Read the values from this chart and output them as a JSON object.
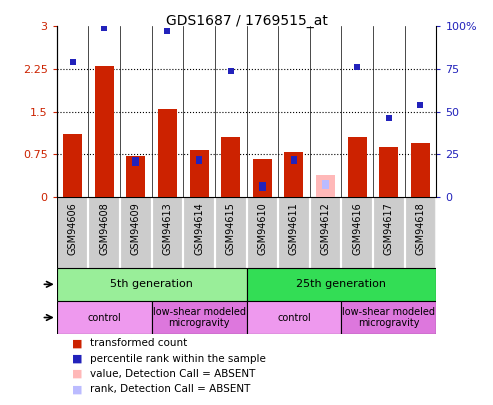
{
  "title": "GDS1687 / 1769515_at",
  "samples": [
    "GSM94606",
    "GSM94608",
    "GSM94609",
    "GSM94613",
    "GSM94614",
    "GSM94615",
    "GSM94610",
    "GSM94611",
    "GSM94612",
    "GSM94616",
    "GSM94617",
    "GSM94618"
  ],
  "red_bars": [
    1.1,
    2.3,
    0.72,
    1.55,
    0.82,
    1.05,
    0.67,
    0.78,
    0.0,
    1.05,
    0.88,
    0.95
  ],
  "blue_dots_left": [
    2.38,
    2.97,
    null,
    2.92,
    null,
    2.22,
    null,
    null,
    null,
    2.28,
    1.38,
    1.62
  ],
  "blue_seg_left": [
    null,
    null,
    0.62,
    null,
    0.65,
    null,
    0.18,
    0.65,
    null,
    null,
    null,
    null
  ],
  "absent_red_left": [
    null,
    null,
    null,
    null,
    null,
    null,
    null,
    null,
    0.38,
    null,
    null,
    null
  ],
  "absent_blue_left": [
    null,
    null,
    null,
    null,
    null,
    null,
    null,
    null,
    0.22,
    null,
    null,
    null
  ],
  "ylim_left": [
    0,
    3.0
  ],
  "ylim_right": [
    0,
    100
  ],
  "yticks_left": [
    0,
    0.75,
    1.5,
    2.25,
    3.0
  ],
  "yticks_right": [
    0,
    25,
    50,
    75,
    100
  ],
  "ytick_labels_left": [
    "0",
    "0.75",
    "1.5",
    "2.25",
    "3"
  ],
  "ytick_labels_right": [
    "0",
    "25",
    "50",
    "75",
    "100%"
  ],
  "age_groups": [
    {
      "label": "5th generation",
      "start": 0,
      "end": 6,
      "color": "#99EE99"
    },
    {
      "label": "25th generation",
      "start": 6,
      "end": 12,
      "color": "#33DD55"
    }
  ],
  "stress_groups": [
    {
      "label": "control",
      "start": 0,
      "end": 3,
      "color": "#EE99EE"
    },
    {
      "label": "low-shear modeled\nmicrogravity",
      "start": 3,
      "end": 6,
      "color": "#DD77DD"
    },
    {
      "label": "control",
      "start": 6,
      "end": 9,
      "color": "#EE99EE"
    },
    {
      "label": "low-shear modeled\nmicrogravity",
      "start": 9,
      "end": 12,
      "color": "#DD77DD"
    }
  ],
  "bar_width": 0.6,
  "red_color": "#CC2200",
  "blue_color": "#2222BB",
  "absent_red_color": "#FFB8B8",
  "absent_blue_color": "#BBBBFF",
  "tick_label_bg": "#CCCCCC",
  "legend_items": [
    {
      "color": "#CC2200",
      "label": "transformed count"
    },
    {
      "color": "#2222BB",
      "label": "percentile rank within the sample"
    },
    {
      "color": "#FFB8B8",
      "label": "value, Detection Call = ABSENT"
    },
    {
      "color": "#BBBBFF",
      "label": "rank, Detection Call = ABSENT"
    }
  ]
}
